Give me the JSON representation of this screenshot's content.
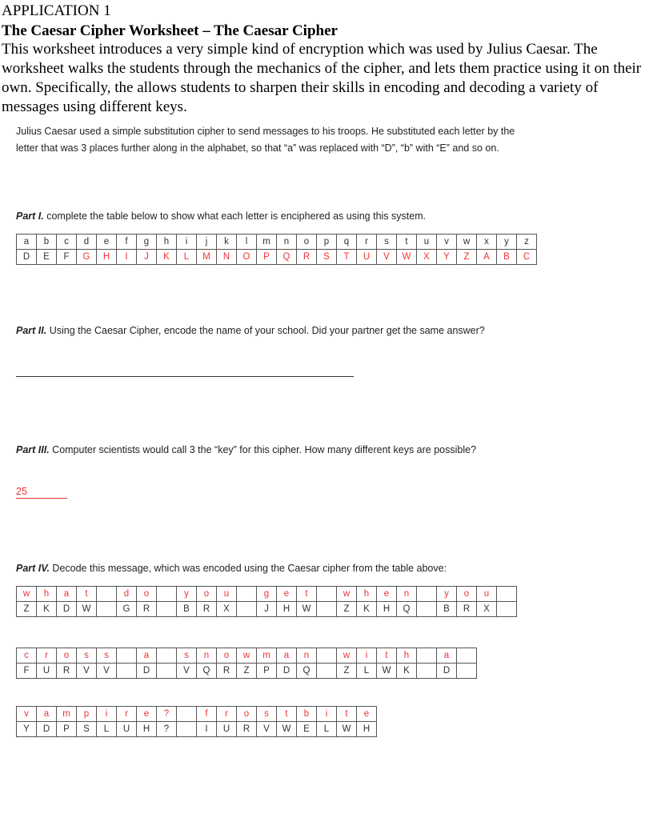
{
  "heading": "APPLICATION 1",
  "title": "The Caesar Cipher Worksheet – The Caesar Cipher",
  "intro": " This worksheet introduces a very simple kind of encryption which was used by Julius Caesar. The worksheet walks the students through the mechanics of the cipher, and lets them practice using it on their own. Specifically, the allows students to sharpen their skills in encoding and decoding a variety of messages using different keys.",
  "description": "Julius Caesar used a simple substitution cipher to send messages to his troops. He substituted each letter by the letter that was 3 places further along in the alphabet, so that “a” was replaced with “D”, “b” with “E” and so on.",
  "part1": {
    "label": "Part I.",
    "text": " complete the table below to show what each letter is enciphered as using this system.",
    "plain": "abcdefghijklmnopqrstuvwxyz",
    "cipher": "DEFGHIJKLMNOPQRSTUVWXYZABC",
    "given_count": 3
  },
  "part2": {
    "label": "Part II.",
    "text": " Using the Caesar Cipher, encode the name of your school. Did your partner get the same answer?"
  },
  "part3": {
    "label": "Part III.",
    "text": " Computer scientists would call 3 the “key” for this cipher. How many different keys are possible?",
    "answer": "25"
  },
  "part4": {
    "label": "Part IV.",
    "text": " Decode this message, which was encoded using the Caesar cipher from the table above:",
    "tables": [
      {
        "plain": "what do you get when you ",
        "cipher": "ZKDW GR BRX JHW ZKHQ BRX "
      },
      {
        "plain": "cross a snowman with a ",
        "cipher": "FURVV D VQRZPDQ ZLWK D "
      },
      {
        "plain": "vampire? frostbite",
        "cipher": "YDPSLUH? IURVWELWH"
      }
    ]
  },
  "colors": {
    "answer": "#e33",
    "given": "#333"
  }
}
